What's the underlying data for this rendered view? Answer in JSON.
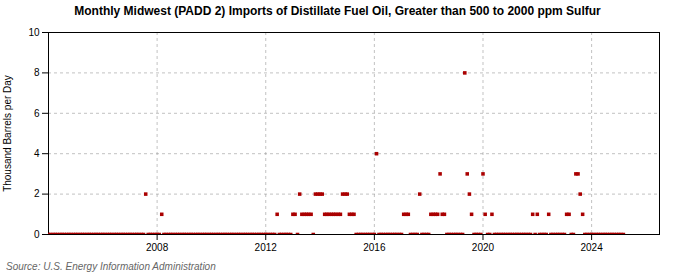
{
  "chart_data": {
    "type": "scatter",
    "title": "Monthly Midwest (PADD 2) Imports of Distillate Fuel Oil, Greater than 500 to 2000 ppm Sulfur",
    "ylabel": "Thousand Barrels per Day",
    "source": "Source: U.S. Energy Information Administration",
    "color": "#aa0000",
    "marker": "square",
    "grid": true,
    "xlim": [
      2004.0,
      2026.5
    ],
    "xticks": [
      2008,
      2012,
      2016,
      2020,
      2024
    ],
    "ylim": [
      0,
      10
    ],
    "yticks": [
      0,
      2,
      4,
      6,
      8,
      10
    ],
    "x": [
      2004.0,
      2004.08,
      2004.17,
      2004.25,
      2004.33,
      2004.42,
      2004.5,
      2004.58,
      2004.67,
      2004.75,
      2004.83,
      2004.92,
      2005.0,
      2005.08,
      2005.17,
      2005.25,
      2005.33,
      2005.42,
      2005.5,
      2005.58,
      2005.67,
      2005.75,
      2005.83,
      2005.92,
      2006.0,
      2006.08,
      2006.17,
      2006.25,
      2006.33,
      2006.42,
      2006.5,
      2006.58,
      2006.67,
      2006.75,
      2006.83,
      2006.92,
      2007.0,
      2007.08,
      2007.17,
      2007.25,
      2007.33,
      2007.42,
      2007.5,
      2007.58,
      2007.67,
      2007.75,
      2007.83,
      2007.92,
      2008.0,
      2008.08,
      2008.17,
      2008.25,
      2008.33,
      2008.42,
      2008.5,
      2008.58,
      2008.67,
      2008.75,
      2008.83,
      2008.92,
      2009.0,
      2009.08,
      2009.17,
      2009.25,
      2009.33,
      2009.42,
      2009.5,
      2009.58,
      2009.67,
      2009.75,
      2009.83,
      2009.92,
      2010.0,
      2010.08,
      2010.17,
      2010.25,
      2010.33,
      2010.42,
      2010.5,
      2010.58,
      2010.67,
      2010.75,
      2010.83,
      2010.92,
      2011.0,
      2011.08,
      2011.17,
      2011.25,
      2011.33,
      2011.42,
      2011.5,
      2011.58,
      2011.67,
      2011.75,
      2011.83,
      2011.92,
      2012.0,
      2012.08,
      2012.17,
      2012.25,
      2012.33,
      2012.42,
      2012.5,
      2012.58,
      2012.67,
      2012.75,
      2012.83,
      2012.92,
      2013.0,
      2013.08,
      2013.17,
      2013.25,
      2013.33,
      2013.42,
      2013.5,
      2013.58,
      2013.67,
      2013.75,
      2013.83,
      2013.92,
      2014.0,
      2014.08,
      2014.17,
      2014.25,
      2014.33,
      2014.42,
      2014.5,
      2014.58,
      2014.67,
      2014.75,
      2014.83,
      2014.92,
      2015.0,
      2015.08,
      2015.17,
      2015.25,
      2015.33,
      2015.42,
      2015.5,
      2015.58,
      2015.67,
      2015.75,
      2015.83,
      2015.92,
      2016.0,
      2016.08,
      2016.17,
      2016.25,
      2016.33,
      2016.42,
      2016.5,
      2016.58,
      2016.67,
      2016.75,
      2016.83,
      2016.92,
      2017.0,
      2017.08,
      2017.17,
      2017.25,
      2017.33,
      2017.42,
      2017.5,
      2017.58,
      2017.67,
      2017.75,
      2017.83,
      2017.92,
      2018.0,
      2018.08,
      2018.17,
      2018.25,
      2018.33,
      2018.42,
      2018.5,
      2018.58,
      2018.67,
      2018.75,
      2018.83,
      2018.92,
      2019.0,
      2019.08,
      2019.17,
      2019.25,
      2019.33,
      2019.42,
      2019.5,
      2019.58,
      2019.67,
      2019.75,
      2019.83,
      2019.92,
      2020.0,
      2020.08,
      2020.17,
      2020.25,
      2020.33,
      2020.42,
      2020.5,
      2020.58,
      2020.67,
      2020.75,
      2020.83,
      2020.92,
      2021.0,
      2021.08,
      2021.17,
      2021.25,
      2021.33,
      2021.42,
      2021.5,
      2021.58,
      2021.67,
      2021.75,
      2021.83,
      2021.92,
      2022.0,
      2022.08,
      2022.17,
      2022.25,
      2022.33,
      2022.42,
      2022.5,
      2022.58,
      2022.67,
      2022.75,
      2022.83,
      2022.92,
      2023.0,
      2023.08,
      2023.17,
      2023.25,
      2023.33,
      2023.42,
      2023.5,
      2023.58,
      2023.67,
      2023.75,
      2023.83,
      2023.92,
      2024.0,
      2024.08,
      2024.17,
      2024.25,
      2024.33,
      2024.42,
      2024.5,
      2024.58,
      2024.67,
      2024.75,
      2024.83,
      2024.92,
      2025.0,
      2025.08,
      2025.17
    ],
    "values": [
      0,
      0,
      0,
      0,
      0,
      0,
      0,
      0,
      0,
      0,
      0,
      0,
      0,
      0,
      0,
      0,
      0,
      0,
      0,
      0,
      0,
      0,
      0,
      0,
      0,
      0,
      0,
      0,
      0,
      0,
      0,
      0,
      0,
      0,
      0,
      0,
      0,
      0,
      0,
      0,
      0,
      0.0,
      0.0,
      2.0,
      0.0,
      0.0,
      0.0,
      0.0,
      0,
      0,
      1.0,
      0,
      0,
      0,
      0,
      0,
      0,
      0,
      0,
      0,
      0,
      0,
      0,
      0,
      0,
      0,
      0,
      0,
      0,
      0,
      0,
      0,
      0,
      0,
      0,
      0,
      0,
      0,
      0,
      0,
      0,
      0,
      0,
      0,
      0,
      0,
      0,
      0,
      0,
      0,
      0,
      0,
      0,
      0,
      0,
      0,
      0,
      0,
      0,
      0,
      0,
      1.0,
      0,
      0,
      0,
      0,
      0,
      0,
      1.0,
      1.0,
      0,
      2.0,
      1.0,
      1.0,
      1.0,
      1.0,
      1.0,
      0.0,
      2.0,
      2.0,
      2.0,
      2.0,
      1.0,
      1.0,
      1.0,
      1.0,
      1.0,
      1.0,
      1.0,
      1.0,
      2.0,
      2.0,
      2.0,
      1.0,
      1.0,
      1.0,
      0,
      0,
      0,
      0,
      0,
      0,
      0,
      0,
      0,
      4.0,
      0,
      0,
      0,
      0,
      0,
      0,
      0,
      0,
      0,
      0,
      0,
      1.0,
      1.0,
      1.0,
      0,
      0,
      0,
      0,
      2.0,
      0,
      0,
      0,
      0,
      1.0,
      1.0,
      1.0,
      1.0,
      3.0,
      1.0,
      1.0,
      0,
      0,
      0,
      0,
      0,
      0,
      0,
      0,
      8.0,
      3.0,
      2.0,
      1.0,
      0,
      0,
      0,
      0,
      3.0,
      1.0,
      0,
      0,
      1.0,
      0,
      0,
      0,
      0,
      0,
      0,
      0,
      0,
      0,
      0,
      0,
      0,
      0,
      0,
      0,
      0,
      0,
      1.0,
      0,
      1.0,
      0,
      0,
      0,
      0,
      1.0,
      0,
      0,
      0,
      0,
      0,
      0,
      0,
      1.0,
      1.0,
      0,
      0,
      3.0,
      3.0,
      2.0,
      1.0,
      0,
      0,
      0,
      0,
      0,
      0,
      0,
      0,
      0,
      0,
      0,
      0,
      0,
      0,
      0,
      0,
      0,
      0
    ]
  }
}
